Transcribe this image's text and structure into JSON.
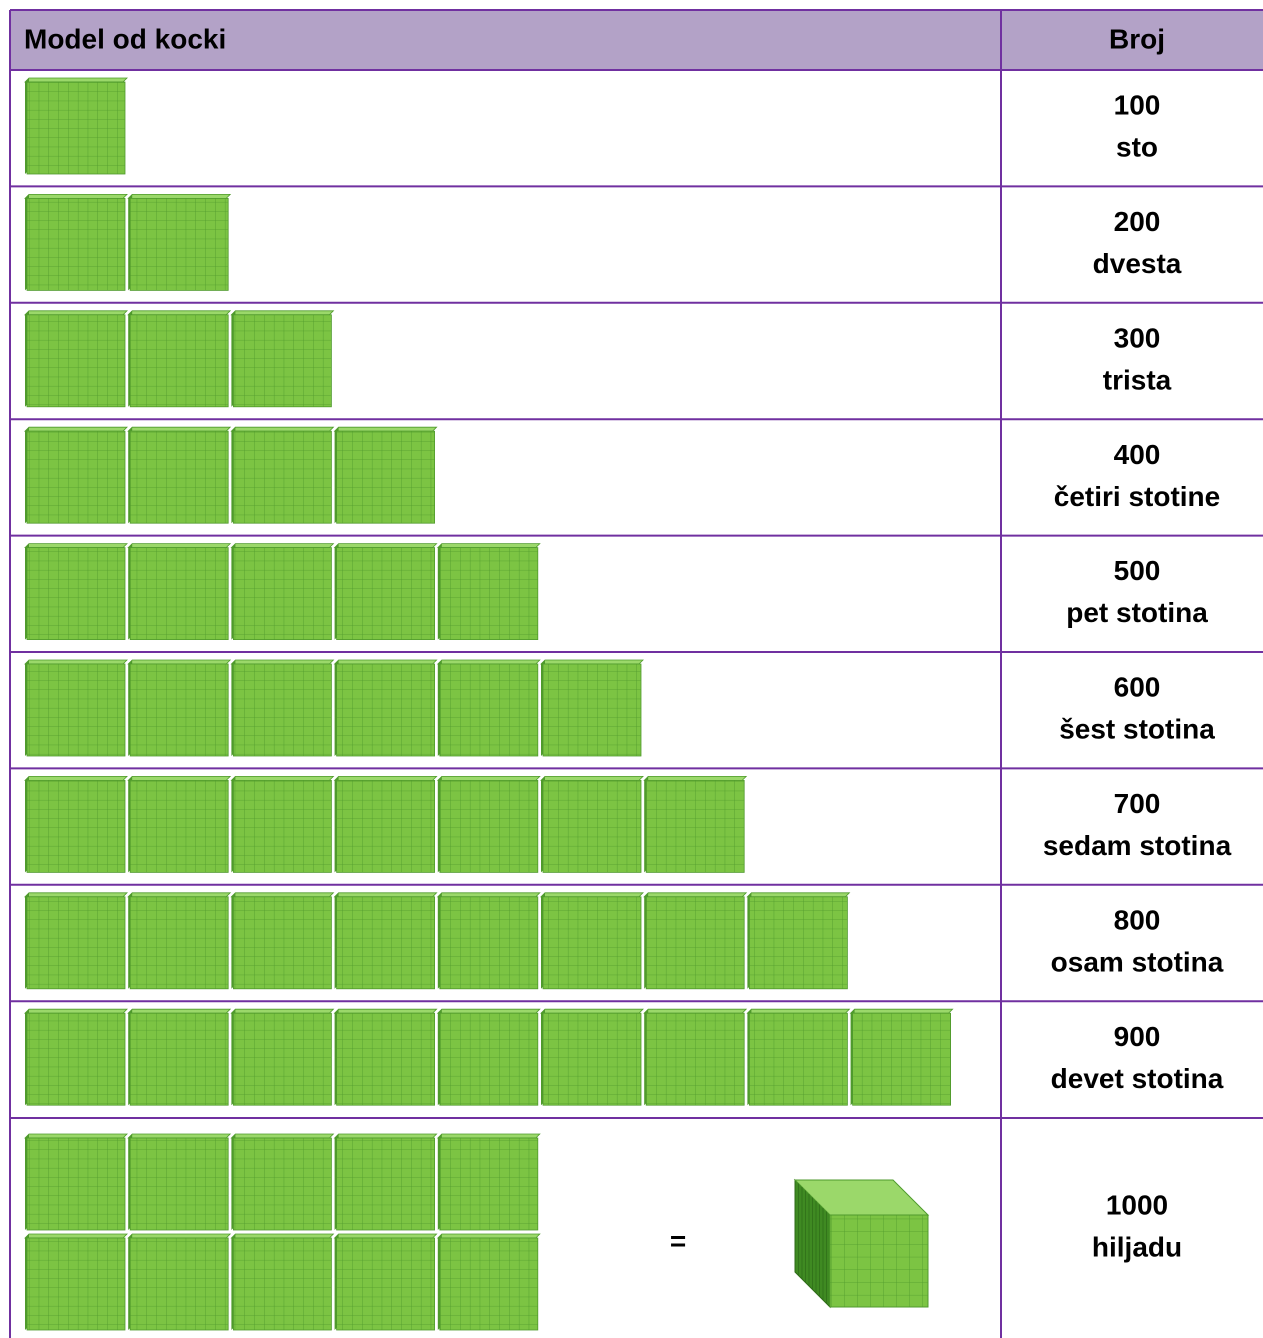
{
  "header": {
    "model": "Model od kocki",
    "number": "Broj"
  },
  "rows": [
    {
      "number": "100",
      "word": "sto"
    },
    {
      "number": "200",
      "word": "dvesta"
    },
    {
      "number": "300",
      "word": "trista"
    },
    {
      "number": "400",
      "word": "četiri stotine"
    },
    {
      "number": "500",
      "word": "pet stotina"
    },
    {
      "number": "600",
      "word": "šest stotina"
    },
    {
      "number": "700",
      "word": "sedam stotina"
    },
    {
      "number": "800",
      "word": "osam stotina"
    },
    {
      "number": "900",
      "word": "devet stotina"
    },
    {
      "number": "1000",
      "word": "hiljadu",
      "equals": "="
    }
  ]
}
